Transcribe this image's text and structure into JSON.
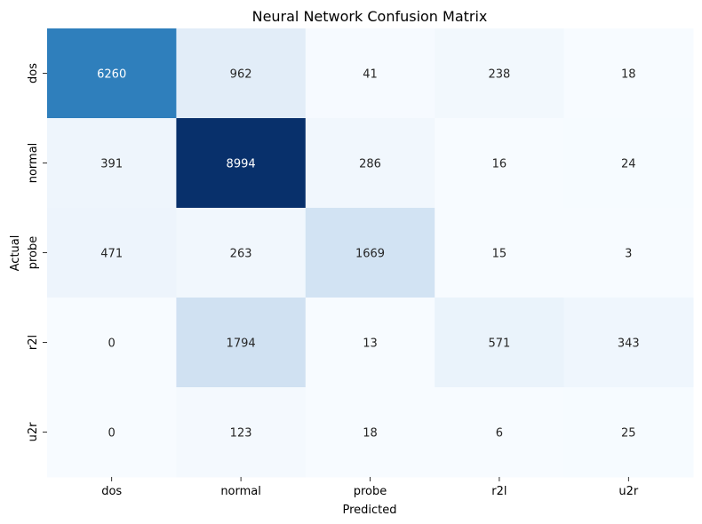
{
  "chart_data": {
    "type": "heatmap",
    "title": "Neural Network Confusion Matrix",
    "xlabel": "Predicted",
    "ylabel": "Actual",
    "x_labels": [
      "dos",
      "normal",
      "probe",
      "r2l",
      "u2r"
    ],
    "y_labels": [
      "dos",
      "normal",
      "probe",
      "r2l",
      "u2r"
    ],
    "values": [
      [
        6260,
        962,
        41,
        238,
        18
      ],
      [
        391,
        8994,
        286,
        16,
        24
      ],
      [
        471,
        263,
        1669,
        15,
        3
      ],
      [
        0,
        1794,
        13,
        571,
        343
      ],
      [
        0,
        123,
        18,
        6,
        25
      ]
    ],
    "colormap": "Blues",
    "color_low": "#f7fbff",
    "color_high": "#08306b",
    "annotation_dark_text": "#262626",
    "annotation_light_text": "#ffffff",
    "colorbar": false
  }
}
